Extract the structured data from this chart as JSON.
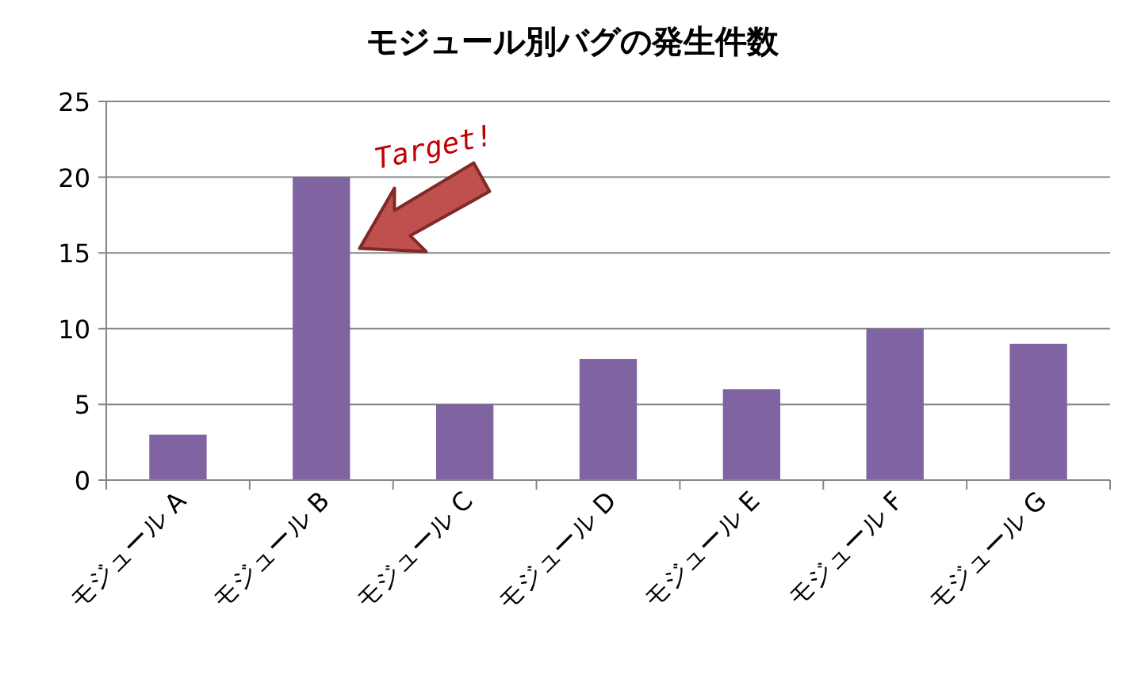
{
  "chart_data": {
    "type": "bar",
    "title": "モジュール別バグの発生件数",
    "categories": [
      "モジュール A",
      "モジュール B",
      "モジュール C",
      "モジュール D",
      "モジュール E",
      "モジュール F",
      "モジュール G"
    ],
    "values": [
      3,
      20,
      5,
      8,
      6,
      10,
      9
    ],
    "color": "#8064a2",
    "ylim": [
      0,
      25
    ],
    "yticks": [
      0,
      5,
      10,
      15,
      20,
      25
    ],
    "grid": "y",
    "annotations": [
      {
        "text": "Target!",
        "x": "モジュール B",
        "y": 20
      }
    ]
  }
}
